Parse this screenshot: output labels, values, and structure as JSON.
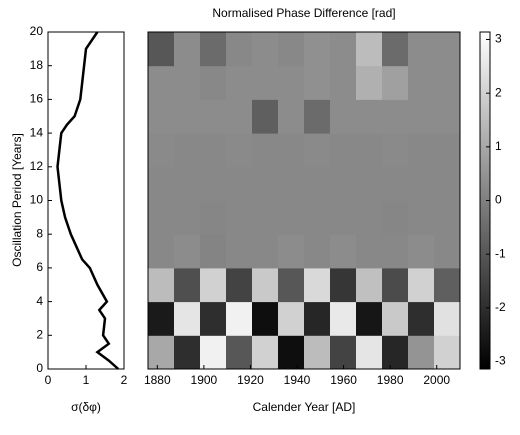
{
  "chart_data": [
    {
      "type": "line",
      "xlabel": "σ(δφ)",
      "ylabel": "Oscillation Period [Years]",
      "y": [
        0,
        0.5,
        1,
        1.5,
        2,
        3,
        3.5,
        4,
        5,
        6,
        6.5,
        7,
        8,
        9,
        10,
        11,
        12,
        13,
        14,
        14.5,
        15,
        16,
        17,
        18,
        19,
        20
      ],
      "values": [
        1.85,
        1.6,
        1.3,
        1.6,
        1.45,
        1.5,
        1.35,
        1.55,
        1.3,
        1.1,
        0.9,
        0.8,
        0.6,
        0.45,
        0.35,
        0.3,
        0.25,
        0.3,
        0.35,
        0.5,
        0.7,
        0.85,
        0.9,
        0.95,
        1.0,
        1.3
      ],
      "color": "#000000",
      "xlim": [
        0,
        2
      ],
      "xticks": [
        0,
        1,
        2
      ],
      "ylim": [
        0,
        20
      ],
      "yticks": [
        0,
        2,
        4,
        6,
        8,
        10,
        12,
        14,
        16,
        18,
        20
      ]
    },
    {
      "type": "heatmap",
      "title": "Normalised Phase Difference [rad]",
      "xlabel": "Calender Year [AD]",
      "xlim": [
        1876,
        2010
      ],
      "xticks": [
        1880,
        1900,
        1920,
        1940,
        1960,
        1980,
        2000
      ],
      "ylim": [
        0,
        20
      ],
      "z": [
        [
          1,
          -2,
          2.8,
          -1,
          2,
          -2.8,
          1.5,
          -1.5,
          2.5,
          -2.2,
          0.5,
          2
        ],
        [
          -2.5,
          2.5,
          -2,
          2.8,
          -2.8,
          2,
          -2.2,
          2.6,
          -2.6,
          1.8,
          -2,
          2.4
        ],
        [
          1.5,
          -1.2,
          2,
          -1.5,
          1.8,
          -1,
          2.2,
          -1.8,
          1.6,
          -1.3,
          2,
          -0.8
        ],
        [
          0.2,
          0.3,
          0.1,
          0.2,
          0.2,
          0.3,
          0.2,
          0.3,
          0.2,
          0.2,
          0.3,
          0.2
        ],
        [
          0.2,
          0.2,
          0.15,
          0.2,
          0.2,
          0.2,
          0.2,
          0.2,
          0.2,
          0.15,
          0.2,
          0.2
        ],
        [
          0.2,
          0.2,
          0.2,
          0.2,
          0.2,
          0.2,
          0.2,
          0.2,
          0.2,
          0.2,
          0.2,
          0.2
        ],
        [
          0.25,
          0.2,
          0.2,
          0.25,
          0.2,
          0.2,
          0.25,
          0.2,
          0.2,
          0.25,
          0.2,
          0.2
        ],
        [
          0.3,
          0.3,
          0.3,
          0.3,
          -0.8,
          0.3,
          -0.5,
          0.3,
          0.3,
          0.3,
          0.3,
          0.3
        ],
        [
          0.3,
          0.3,
          0.2,
          0.3,
          0.3,
          0.3,
          0.4,
          0.3,
          1.2,
          0.8,
          0.3,
          0.3
        ],
        [
          -1,
          0.3,
          -0.5,
          0.2,
          0.3,
          0.2,
          0.4,
          0.3,
          1.5,
          -0.5,
          0.3,
          0.3
        ]
      ],
      "zlim": [
        -3.14,
        3.14
      ],
      "zticks": [
        -3,
        -2,
        -1,
        0,
        1,
        2,
        3
      ]
    }
  ]
}
